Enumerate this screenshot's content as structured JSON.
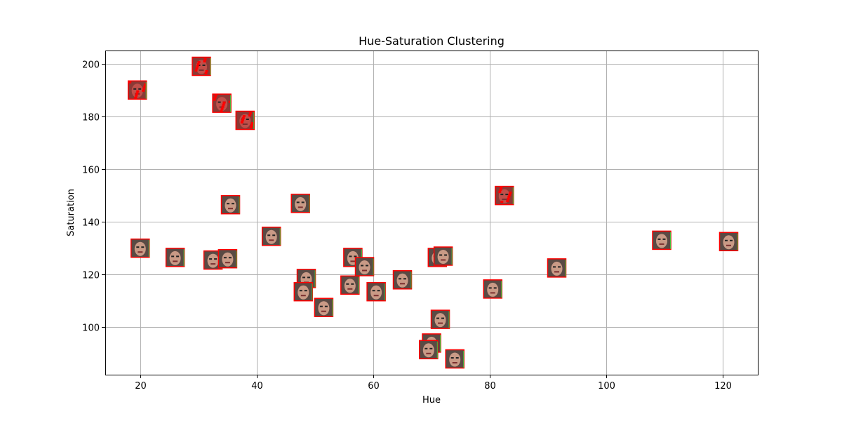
{
  "chart_data": {
    "type": "scatter",
    "title": "Hue-Saturation Clustering",
    "xlabel": "Hue",
    "ylabel": "Saturation",
    "xlim": [
      14,
      126
    ],
    "ylim": [
      82,
      205
    ],
    "xticks": [
      20,
      40,
      60,
      80,
      100,
      120
    ],
    "yticks": [
      100,
      120,
      140,
      160,
      180,
      200
    ],
    "grid": true,
    "marker": "face-thumbnail",
    "points": [
      {
        "x": 19.5,
        "y": 190,
        "tint": "red"
      },
      {
        "x": 30.5,
        "y": 199,
        "tint": "red"
      },
      {
        "x": 34.0,
        "y": 185,
        "tint": "red"
      },
      {
        "x": 38.0,
        "y": 178.5,
        "tint": "red"
      },
      {
        "x": 35.5,
        "y": 146.5,
        "tint": "face"
      },
      {
        "x": 47.5,
        "y": 147,
        "tint": "face"
      },
      {
        "x": 82.5,
        "y": 150,
        "tint": "red"
      },
      {
        "x": 20.0,
        "y": 130,
        "tint": "face"
      },
      {
        "x": 26.0,
        "y": 126.5,
        "tint": "face"
      },
      {
        "x": 32.5,
        "y": 125.5,
        "tint": "face"
      },
      {
        "x": 35.0,
        "y": 126,
        "tint": "face"
      },
      {
        "x": 42.5,
        "y": 134.5,
        "tint": "face"
      },
      {
        "x": 48.5,
        "y": 118.5,
        "tint": "face"
      },
      {
        "x": 48.0,
        "y": 113.5,
        "tint": "face"
      },
      {
        "x": 51.5,
        "y": 107.5,
        "tint": "face"
      },
      {
        "x": 56.0,
        "y": 116,
        "tint": "face"
      },
      {
        "x": 56.5,
        "y": 126.5,
        "tint": "face"
      },
      {
        "x": 58.5,
        "y": 123,
        "tint": "face"
      },
      {
        "x": 60.5,
        "y": 113.5,
        "tint": "face"
      },
      {
        "x": 65.0,
        "y": 118,
        "tint": "face"
      },
      {
        "x": 71.0,
        "y": 126.5,
        "tint": "face"
      },
      {
        "x": 72.0,
        "y": 127,
        "tint": "face"
      },
      {
        "x": 71.5,
        "y": 103,
        "tint": "face"
      },
      {
        "x": 70.0,
        "y": 94,
        "tint": "face"
      },
      {
        "x": 69.5,
        "y": 91.5,
        "tint": "face"
      },
      {
        "x": 74.0,
        "y": 88,
        "tint": "face"
      },
      {
        "x": 80.5,
        "y": 114.5,
        "tint": "face"
      },
      {
        "x": 91.5,
        "y": 122.5,
        "tint": "face"
      },
      {
        "x": 109.5,
        "y": 133,
        "tint": "face"
      },
      {
        "x": 121.0,
        "y": 132.5,
        "tint": "face"
      }
    ]
  }
}
